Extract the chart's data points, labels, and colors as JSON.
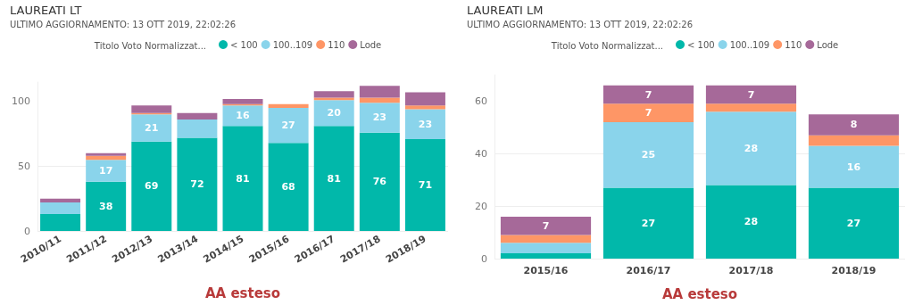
{
  "chart_data": [
    {
      "type": "bar",
      "title": "LAUREATI LT",
      "subtitle": "ULTIMO AGGIORNAMENTO: 13 OTT 2019, 22:02:26",
      "legend_title": "Titolo Voto Normalizzat...",
      "xlabel": "AA esteso",
      "stacked": true,
      "legend": "top",
      "grid": "y",
      "ylim": [
        0,
        115
      ],
      "yticks": [
        0,
        50,
        100
      ],
      "categories": [
        "2010/11",
        "2011/12",
        "2012/13",
        "2013/14",
        "2014/15",
        "2015/16",
        "2016/17",
        "2017/18",
        "2018/19"
      ],
      "series": [
        {
          "name": "< 100",
          "color": "#01b8aa",
          "values": [
            13,
            38,
            69,
            72,
            81,
            68,
            81,
            76,
            71
          ],
          "value_labels": [
            null,
            "38",
            "69",
            "72",
            "81",
            "68",
            "81",
            "76",
            "71"
          ]
        },
        {
          "name": "100..109",
          "color": "#8ad4eb",
          "values": [
            9,
            17,
            21,
            14,
            16,
            27,
            20,
            23,
            23
          ],
          "value_labels": [
            null,
            "17",
            "21",
            null,
            "16",
            "27",
            "20",
            "23",
            "23"
          ]
        },
        {
          "name": "110",
          "color": "#fe9666",
          "values": [
            0,
            3,
            1,
            0,
            1,
            3,
            2,
            4,
            3
          ]
        },
        {
          "name": "Lode",
          "color": "#a66999",
          "values": [
            3,
            2,
            6,
            5,
            4,
            0,
            5,
            9,
            10
          ]
        }
      ]
    },
    {
      "type": "bar",
      "title": "LAUREATI LM",
      "subtitle": "ULTIMO AGGIORNAMENTO: 13 OTT 2019, 22:02:26",
      "legend_title": "Titolo Voto Normalizzat...",
      "xlabel": "AA esteso",
      "stacked": true,
      "legend": "top",
      "grid": "y",
      "ylim": [
        0,
        70
      ],
      "yticks": [
        0,
        20,
        40,
        60
      ],
      "categories": [
        "2015/16",
        "2016/17",
        "2017/18",
        "2018/19"
      ],
      "series": [
        {
          "name": "< 100",
          "color": "#01b8aa",
          "values": [
            2,
            27,
            28,
            27
          ],
          "value_labels": [
            null,
            "27",
            "28",
            "27"
          ]
        },
        {
          "name": "100..109",
          "color": "#8ad4eb",
          "values": [
            4,
            25,
            28,
            16
          ],
          "value_labels": [
            null,
            "25",
            "28",
            "16"
          ]
        },
        {
          "name": "110",
          "color": "#fe9666",
          "values": [
            3,
            7,
            3,
            4
          ],
          "value_labels": [
            null,
            "7",
            null,
            null
          ]
        },
        {
          "name": "Lode",
          "color": "#a66999",
          "values": [
            7,
            7,
            7,
            8
          ],
          "value_labels": [
            "7",
            "7",
            "7",
            "8"
          ]
        }
      ]
    }
  ]
}
